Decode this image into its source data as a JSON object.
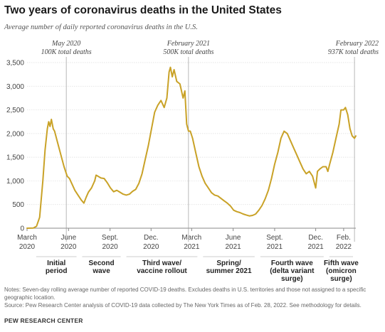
{
  "header": {
    "title": "Two years of coronavirus deaths in the United States",
    "subtitle": "Average number of daily reported coronavirus deaths in the U.S."
  },
  "notes": {
    "line1": "Notes: Seven-day rolling average number of reported COVID-19 deaths. Excludes deaths in U.S. territories and those not assigned to a specific geographic location.",
    "line2": "Source: Pew Research Center analysis of COVID-19 data collected by The New York Times as of Feb. 28, 2022. See methodology for details."
  },
  "org": "PEW RESEARCH CENTER",
  "colors": {
    "line": "#c9a227",
    "grid": "#dddddd",
    "marker": "#999999"
  },
  "chart_data": {
    "type": "line",
    "title": "Two years of coronavirus deaths in the United States",
    "subtitle": "Average number of daily reported coronavirus deaths in the U.S.",
    "xlabel": "",
    "ylabel": "",
    "ylim": [
      0,
      3500
    ],
    "xlim": [
      "2020-03-01",
      "2022-02-28"
    ],
    "grid": true,
    "y_ticks": [
      {
        "value": 0,
        "label": "0"
      },
      {
        "value": 500,
        "label": "500"
      },
      {
        "value": 1000,
        "label": "1,000"
      },
      {
        "value": 1500,
        "label": "1,500"
      },
      {
        "value": 2000,
        "label": "2,000"
      },
      {
        "value": 2500,
        "label": "2,500"
      },
      {
        "value": 3000,
        "label": "3,000"
      },
      {
        "value": 3500,
        "label": "3,500"
      }
    ],
    "x_ticks": [
      {
        "date": "2020-03-01",
        "line1": "March",
        "line2": "2020"
      },
      {
        "date": "2020-06-01",
        "line1": "June",
        "line2": "2020"
      },
      {
        "date": "2020-09-01",
        "line1": "Sept.",
        "line2": "2020"
      },
      {
        "date": "2020-12-01",
        "line1": "Dec.",
        "line2": "2020"
      },
      {
        "date": "2021-03-01",
        "line1": "March",
        "line2": "2021"
      },
      {
        "date": "2021-06-01",
        "line1": "June",
        "line2": "2021"
      },
      {
        "date": "2021-09-01",
        "line1": "Sept.",
        "line2": "2021"
      },
      {
        "date": "2021-12-01",
        "line1": "Dec.",
        "line2": "2021"
      },
      {
        "date": "2022-02-01",
        "line1": "Feb.",
        "line2": "2022"
      }
    ],
    "annotations": [
      {
        "date": "2020-05-27",
        "line1": "May 2020",
        "line2": "100K total deaths"
      },
      {
        "date": "2021-02-22",
        "line1": "February 2021",
        "line2": "500K total deaths"
      },
      {
        "date": "2022-02-25",
        "line1": "February 2022",
        "line2": "937K total deaths"
      }
    ],
    "waves": [
      {
        "start": "2020-03-15",
        "end": "2020-06-25",
        "lines": [
          "Initial",
          "period"
        ]
      },
      {
        "start": "2020-06-25",
        "end": "2020-10-01",
        "lines": [
          "Second",
          "wave"
        ]
      },
      {
        "start": "2020-10-01",
        "end": "2021-03-20",
        "lines": [
          "Third wave/",
          "vaccine rollout"
        ]
      },
      {
        "start": "2021-03-20",
        "end": "2021-07-25",
        "lines": [
          "Spring/",
          "summer 2021"
        ]
      },
      {
        "start": "2021-07-25",
        "end": "2021-12-25",
        "lines": [
          "Fourth wave",
          "(delta variant",
          "surge)"
        ]
      },
      {
        "start": "2021-12-25",
        "end": "2022-02-28",
        "lines": [
          "Fifth wave",
          "(omicron",
          "surge)"
        ]
      }
    ],
    "series": [
      {
        "values": [
          [
            "2020-03-01",
            0
          ],
          [
            "2020-03-15",
            5
          ],
          [
            "2020-03-22",
            40
          ],
          [
            "2020-03-29",
            230
          ],
          [
            "2020-04-05",
            1000
          ],
          [
            "2020-04-10",
            1650
          ],
          [
            "2020-04-15",
            2100
          ],
          [
            "2020-04-18",
            2250
          ],
          [
            "2020-04-21",
            2150
          ],
          [
            "2020-04-24",
            2300
          ],
          [
            "2020-04-28",
            2100
          ],
          [
            "2020-05-01",
            2050
          ],
          [
            "2020-05-08",
            1800
          ],
          [
            "2020-05-15",
            1550
          ],
          [
            "2020-05-22",
            1300
          ],
          [
            "2020-05-29",
            1100
          ],
          [
            "2020-06-03",
            1050
          ],
          [
            "2020-06-08",
            950
          ],
          [
            "2020-06-15",
            800
          ],
          [
            "2020-06-22",
            700
          ],
          [
            "2020-06-29",
            600
          ],
          [
            "2020-07-05",
            530
          ],
          [
            "2020-07-10",
            650
          ],
          [
            "2020-07-15",
            760
          ],
          [
            "2020-07-22",
            850
          ],
          [
            "2020-07-29",
            1000
          ],
          [
            "2020-08-01",
            1120
          ],
          [
            "2020-08-05",
            1100
          ],
          [
            "2020-08-12",
            1060
          ],
          [
            "2020-08-19",
            1050
          ],
          [
            "2020-08-26",
            960
          ],
          [
            "2020-09-02",
            850
          ],
          [
            "2020-09-09",
            770
          ],
          [
            "2020-09-16",
            800
          ],
          [
            "2020-09-23",
            760
          ],
          [
            "2020-09-30",
            720
          ],
          [
            "2020-10-07",
            700
          ],
          [
            "2020-10-14",
            720
          ],
          [
            "2020-10-21",
            780
          ],
          [
            "2020-10-28",
            820
          ],
          [
            "2020-11-04",
            950
          ],
          [
            "2020-11-11",
            1150
          ],
          [
            "2020-11-18",
            1450
          ],
          [
            "2020-11-25",
            1750
          ],
          [
            "2020-12-02",
            2100
          ],
          [
            "2020-12-09",
            2450
          ],
          [
            "2020-12-16",
            2600
          ],
          [
            "2020-12-23",
            2700
          ],
          [
            "2020-12-30",
            2550
          ],
          [
            "2021-01-05",
            2750
          ],
          [
            "2021-01-10",
            3300
          ],
          [
            "2021-01-13",
            3400
          ],
          [
            "2021-01-17",
            3200
          ],
          [
            "2021-01-21",
            3350
          ],
          [
            "2021-01-27",
            3100
          ],
          [
            "2021-02-03",
            3050
          ],
          [
            "2021-02-10",
            2750
          ],
          [
            "2021-02-14",
            2900
          ],
          [
            "2021-02-18",
            2200
          ],
          [
            "2021-02-22",
            2050
          ],
          [
            "2021-02-26",
            2050
          ],
          [
            "2021-03-03",
            1900
          ],
          [
            "2021-03-10",
            1600
          ],
          [
            "2021-03-17",
            1300
          ],
          [
            "2021-03-24",
            1100
          ],
          [
            "2021-03-31",
            950
          ],
          [
            "2021-04-07",
            850
          ],
          [
            "2021-04-14",
            750
          ],
          [
            "2021-04-21",
            700
          ],
          [
            "2021-04-28",
            680
          ],
          [
            "2021-05-05",
            630
          ],
          [
            "2021-05-12",
            580
          ],
          [
            "2021-05-19",
            530
          ],
          [
            "2021-05-26",
            470
          ],
          [
            "2021-06-02",
            380
          ],
          [
            "2021-06-09",
            350
          ],
          [
            "2021-06-16",
            330
          ],
          [
            "2021-06-23",
            300
          ],
          [
            "2021-06-30",
            280
          ],
          [
            "2021-07-07",
            260
          ],
          [
            "2021-07-14",
            270
          ],
          [
            "2021-07-21",
            300
          ],
          [
            "2021-07-28",
            380
          ],
          [
            "2021-08-04",
            480
          ],
          [
            "2021-08-11",
            620
          ],
          [
            "2021-08-18",
            800
          ],
          [
            "2021-08-25",
            1050
          ],
          [
            "2021-09-01",
            1350
          ],
          [
            "2021-09-08",
            1600
          ],
          [
            "2021-09-15",
            1900
          ],
          [
            "2021-09-22",
            2050
          ],
          [
            "2021-09-29",
            2000
          ],
          [
            "2021-10-06",
            1850
          ],
          [
            "2021-10-13",
            1700
          ],
          [
            "2021-10-20",
            1550
          ],
          [
            "2021-10-27",
            1400
          ],
          [
            "2021-11-03",
            1250
          ],
          [
            "2021-11-10",
            1150
          ],
          [
            "2021-11-17",
            1200
          ],
          [
            "2021-11-24",
            1100
          ],
          [
            "2021-12-01",
            850
          ],
          [
            "2021-12-05",
            1200
          ],
          [
            "2021-12-10",
            1250
          ],
          [
            "2021-12-17",
            1300
          ],
          [
            "2021-12-24",
            1300
          ],
          [
            "2021-12-28",
            1200
          ],
          [
            "2022-01-01",
            1350
          ],
          [
            "2022-01-08",
            1600
          ],
          [
            "2022-01-15",
            1900
          ],
          [
            "2022-01-22",
            2200
          ],
          [
            "2022-01-26",
            2500
          ],
          [
            "2022-02-01",
            2500
          ],
          [
            "2022-02-05",
            2550
          ],
          [
            "2022-02-10",
            2400
          ],
          [
            "2022-02-15",
            2100
          ],
          [
            "2022-02-20",
            1950
          ],
          [
            "2022-02-25",
            1900
          ],
          [
            "2022-02-28",
            1950
          ]
        ]
      }
    ]
  }
}
